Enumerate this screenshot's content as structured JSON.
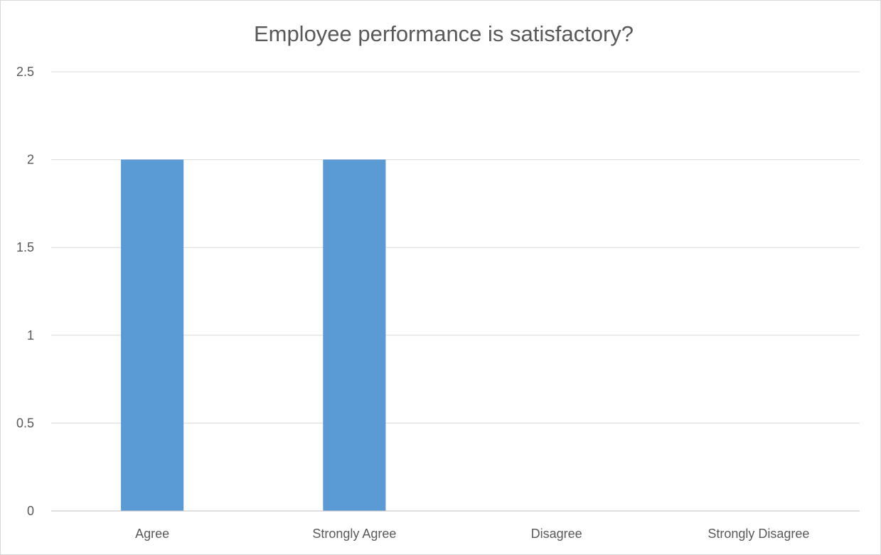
{
  "chart_data": {
    "type": "bar",
    "title": "Employee performance is satisfactory?",
    "categories": [
      "Agree",
      "Strongly Agree",
      "Disagree",
      "Strongly Disagree"
    ],
    "values": [
      2,
      2,
      0,
      0
    ],
    "y_ticks": [
      "0",
      "0.5",
      "1",
      "1.5",
      "2",
      "2.5"
    ],
    "ylim": [
      0,
      2.5
    ],
    "grid": true,
    "legend": "none",
    "xlabel": "",
    "ylabel": "",
    "bar_color": "#5b9bd5"
  }
}
